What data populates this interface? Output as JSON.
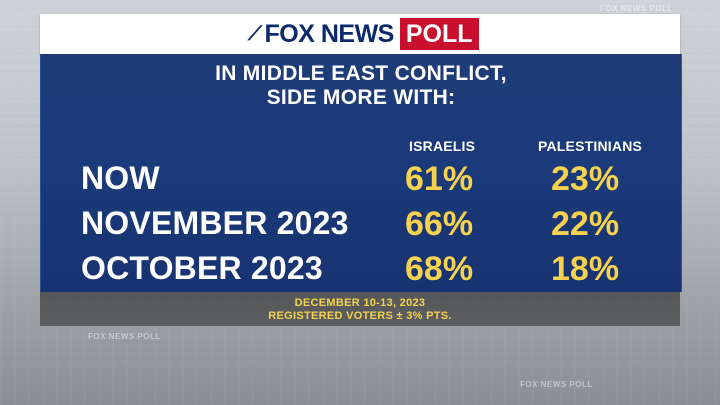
{
  "branding": {
    "fox_news": "FOX NEWS",
    "poll": "POLL",
    "background_watermark": "FOX NEWS POLL"
  },
  "colors": {
    "panel_blue": "#1a3a79",
    "value_yellow": "#f6d24f",
    "poll_red": "#c8102e",
    "navy": "#0b2a6b"
  },
  "chart_data": {
    "type": "table",
    "title_line1": "IN MIDDLE EAST CONFLICT,",
    "title_line2": "SIDE MORE WITH:",
    "columns": [
      "ISRAELIS",
      "PALESTINIANS"
    ],
    "rows": [
      {
        "label": "NOW",
        "values": [
          "61%",
          "23%"
        ]
      },
      {
        "label": "NOVEMBER 2023",
        "values": [
          "66%",
          "22%"
        ]
      },
      {
        "label": "OCTOBER 2023",
        "values": [
          "68%",
          "18%"
        ]
      }
    ]
  },
  "footer": {
    "dates": "DECEMBER 10-13, 2023",
    "sample": "REGISTERED VOTERS ± 3% PTS."
  }
}
